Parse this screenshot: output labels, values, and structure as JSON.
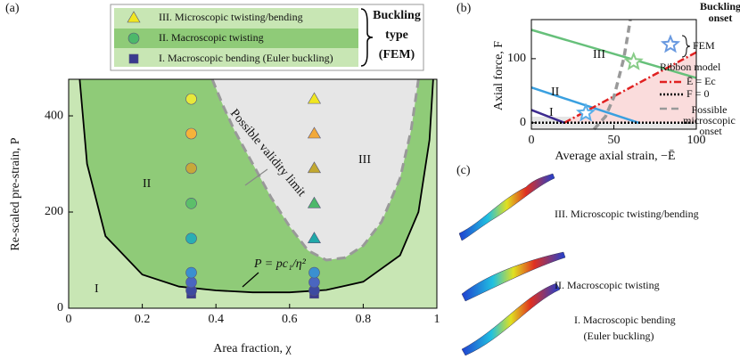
{
  "panel_labels": [
    "(a)",
    "(b)",
    "(c)"
  ],
  "chart_data": [
    {
      "type": "region",
      "xlabel": "Area fraction, χ",
      "ylabel": "Re-scaled pre-strain, P",
      "xlim": [
        0,
        1
      ],
      "ylim": [
        0,
        476
      ],
      "xticks": [
        0,
        0.2,
        0.4,
        0.6,
        0.8,
        1
      ],
      "yticks": [
        0,
        200,
        400
      ],
      "legend": {
        "items": [
          "III. Microscopic twisting/bending",
          "II. Macroscopic twisting",
          "I. Macroscopic bending (Euler buckling)"
        ],
        "title": [
          "Buckling",
          "type",
          "(FEM)"
        ]
      },
      "annotations": [
        "I",
        "II",
        "III",
        "Possible validity limit",
        "P = pc₁/η²"
      ],
      "series": [
        {
          "color": "#000000",
          "x": [
            0.03,
            0.05,
            0.1,
            0.2,
            0.3,
            0.4,
            0.5,
            0.6,
            0.7,
            0.8,
            0.9,
            0.95,
            0.98,
            0.99
          ],
          "values": [
            476,
            300,
            150,
            70,
            45,
            37,
            33,
            33,
            38,
            55,
            110,
            200,
            350,
            476
          ]
        },
        {
          "color": "#999999",
          "x": [
            0.39,
            0.42,
            0.45,
            0.5,
            0.55,
            0.6,
            0.65,
            0.7,
            0.75,
            0.8,
            0.85,
            0.9,
            0.93,
            0.95
          ],
          "values": [
            476,
            420,
            370,
            300,
            230,
            170,
            120,
            100,
            105,
            130,
            180,
            270,
            370,
            476
          ]
        }
      ],
      "markers": [
        {
          "shape": "square",
          "x": [
            0.333,
            0.667
          ],
          "values": [
            30,
            30
          ],
          "colors": [
            "#3a3a8f",
            "#3a3a8f"
          ]
        },
        {
          "shape": "circle",
          "x": [
            0.333,
            0.333,
            0.333,
            0.333,
            0.333,
            0.333,
            0.333,
            0.333,
            0.667,
            0.667,
            0.667
          ],
          "values": [
            37,
            54,
            74,
            145,
            218,
            291,
            363,
            435,
            37,
            54,
            74
          ],
          "colors": [
            "#3d4aa0",
            "#4a66c0",
            "#3a90d0",
            "#2aaeb3",
            "#5cbf6a",
            "#c7a83a",
            "#f5b33a",
            "#e8e83a",
            "#3d4aa0",
            "#4a66c0",
            "#3a90d0"
          ]
        },
        {
          "shape": "triangle",
          "x": [
            0.667,
            0.667,
            0.667,
            0.667,
            0.667
          ],
          "values": [
            145,
            218,
            291,
            363,
            435
          ],
          "colors": [
            "#20a8a8",
            "#4db86a",
            "#c2a830",
            "#f2a93b",
            "#f0e620"
          ]
        }
      ]
    },
    {
      "type": "line",
      "xlabel": "Average axial strain, −Ē",
      "ylabel": "Axial force, F",
      "xlim": [
        0,
        100
      ],
      "ylim": [
        -10,
        161
      ],
      "xticks": [
        0,
        50,
        100
      ],
      "yticks": [
        0,
        100
      ],
      "annotations": [
        "I",
        "II",
        "III"
      ],
      "legend": {
        "title": [
          "Buckling",
          "onset"
        ],
        "fem": "FEM",
        "model": "Ribbon model",
        "items": [
          "Ē = Ec",
          "F = 0",
          "Possible microscopic onset"
        ]
      },
      "series": [
        {
          "color": "#66c07a",
          "x": [
            0,
            100
          ],
          "values": [
            145,
            70
          ]
        },
        {
          "color": "#3aa0e0",
          "x": [
            0,
            65
          ],
          "values": [
            55,
            0
          ]
        },
        {
          "color": "#3d2a8f",
          "x": [
            0,
            20
          ],
          "values": [
            20,
            0
          ]
        },
        {
          "color": "#e02020",
          "x": [
            20,
            100
          ],
          "values": [
            0,
            110
          ]
        },
        {
          "color": "#000000",
          "x": [
            0,
            100
          ],
          "values": [
            0,
            0
          ]
        },
        {
          "color": "#999999",
          "x": [
            38,
            45,
            50,
            53,
            56,
            58,
            60
          ],
          "values": [
            -10,
            10,
            40,
            70,
            100,
            130,
            161
          ]
        }
      ],
      "markers": [
        {
          "shape": "star",
          "x": [
            33,
            62
          ],
          "values": [
            15,
            95
          ],
          "colors": [
            "#5aaee8",
            "#88cc88"
          ]
        }
      ]
    }
  ],
  "panel_c": [
    "III. Microscopic twisting/bending",
    "II. Macroscopic twisting",
    "I. Macroscopic bending",
    "(Euler buckling)"
  ]
}
